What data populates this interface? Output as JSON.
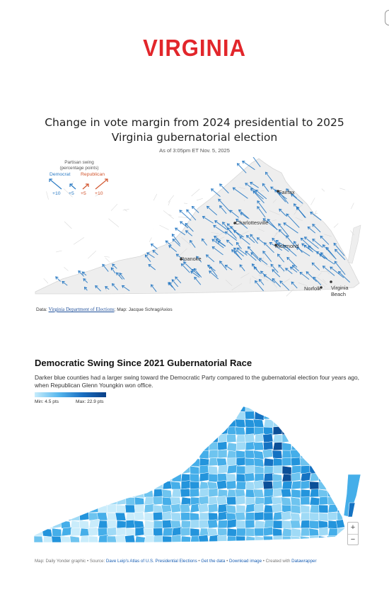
{
  "banner": {
    "title": "VIRGINIA"
  },
  "axios_map": {
    "title": "Change in vote margin from 2024 presidential to 2025 Virginia gubernatorial election",
    "timestamp": "As of 3:05pm ET Nov. 5, 2025",
    "legend": {
      "title_line1": "Partisan swing",
      "title_line2": "(percentage points)",
      "democrat_label": "Democrat",
      "republican_label": "Republican",
      "values": [
        "+10",
        "+5",
        "+5",
        "+10"
      ],
      "democrat_color": "#2b7bc4",
      "republican_color": "#d2552d"
    },
    "cities": {
      "fairfax": "Fairfax",
      "charlottesville": "Charlottesville",
      "richmond": "Richmond",
      "roanoke": "Roanoke",
      "norfolk": "Norfolk",
      "virginia_beach_1": "Virginia",
      "virginia_beach_2": "Beach"
    },
    "source": {
      "prefix": "Data: ",
      "link": "Virginia Department of Elections",
      "suffix": "; Map: Jacque Schrag/Axios"
    },
    "land_color": "#eeeeee",
    "arrow_color": "#2b7bc4"
  },
  "yonder_map": {
    "title": "Democratic Swing Since 2021 Gubernatorial Race",
    "description": "Darker blue counties had a larger swing toward the Democratic Party compared to the gubernatorial election four years ago, when Republican Glenn Youngkin won office.",
    "scale": {
      "min_label": "Min: 4.5 pts",
      "max_label": "Max: 22.9 pts",
      "min": 4.5,
      "max": 22.9
    },
    "zoom_in": "+",
    "zoom_out": "−",
    "footer": {
      "credit": "Map: Daily Yonder graphic • Source: ",
      "source_link": "Dave Leip's Atlas of U.S. Presidential Elections",
      "sep1": " • ",
      "get_data": "Get the data",
      "sep2": " • ",
      "download": "Download image",
      "sep3": " • Created with ",
      "datawrapper": "Datawrapper"
    },
    "palette": [
      "#c9ecfb",
      "#9fdaf6",
      "#6ec4ef",
      "#45aee9",
      "#2394dc",
      "#1472c2",
      "#0b4f98"
    ]
  }
}
